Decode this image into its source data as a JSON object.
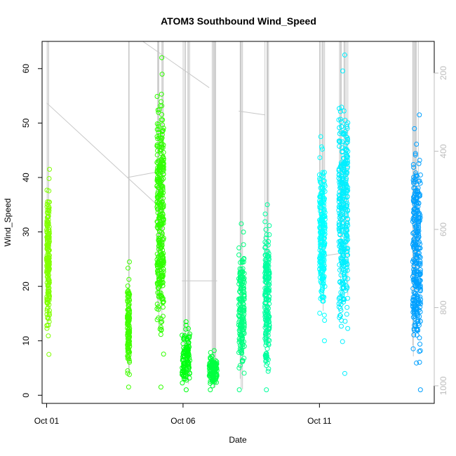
{
  "chart_data": {
    "type": "scatter",
    "title": "ATOM3 Southbound Wind_Speed",
    "xlabel": "Date",
    "ylabel": "Wind_Speed",
    "x_ticks": [
      "Oct 01",
      "Oct 06",
      "Oct 11"
    ],
    "x_range": [
      "2016-09-30T20:00",
      "2016-10-15T05:00"
    ],
    "ylim": [
      -1.5,
      65
    ],
    "y_ticks": [
      0,
      10,
      20,
      30,
      40,
      50,
      60
    ],
    "y2_ticks": [
      200,
      400,
      600,
      800,
      1000
    ],
    "y2_range": [
      119,
      1045
    ],
    "y2_reversed": true,
    "grid": false,
    "colors": {
      "trajectory": "#c8c8c8",
      "axis": "#000000",
      "axis_right": "#bdbdbd"
    },
    "clusters": [
      {
        "start": "2016-10-01T00:00",
        "end": "2016-10-01T02:30",
        "y_min": 7.5,
        "y_max": 41.5,
        "center": 27,
        "color": "#80ff00"
      },
      {
        "start": "2016-10-03T23:00",
        "end": "2016-10-04T01:00",
        "y_min": 1.5,
        "y_max": 24.5,
        "center": 12,
        "color": "#40ff00"
      },
      {
        "start": "2016-10-05T01:00",
        "end": "2016-10-05T07:00",
        "y_min": 1.5,
        "y_max": 62,
        "center": 25,
        "color": "#30ff00"
      },
      {
        "start": "2016-10-05T23:00",
        "end": "2016-10-06T06:00",
        "y_min": 1,
        "y_max": 13.5,
        "center": 3,
        "color": "#00ff10"
      },
      {
        "start": "2016-10-06T23:00",
        "end": "2016-10-07T06:00",
        "y_min": 1,
        "y_max": 8.2,
        "center": 3,
        "color": "#00ff40"
      },
      {
        "start": "2016-10-08T01:00",
        "end": "2016-10-08T06:00",
        "y_min": 1,
        "y_max": 31.5,
        "center": 12,
        "color": "#00ff80"
      },
      {
        "start": "2016-10-09T00:00",
        "end": "2016-10-09T04:00",
        "y_min": 1,
        "y_max": 35,
        "center": 15,
        "color": "#00ff9f"
      },
      {
        "start": "2016-10-11T00:00",
        "end": "2016-10-11T05:00",
        "y_min": 10,
        "y_max": 47.5,
        "center": 30,
        "color": "#00ffff"
      },
      {
        "start": "2016-10-11T17:00",
        "end": "2016-10-12T01:00",
        "y_min": 4,
        "y_max": 62.5,
        "center": 30,
        "color": "#00efff"
      },
      {
        "start": "2016-10-14T10:00",
        "end": "2016-10-14T17:00",
        "y_min": 1,
        "y_max": 51.5,
        "center": 25,
        "color": "#00a0ff"
      }
    ]
  }
}
